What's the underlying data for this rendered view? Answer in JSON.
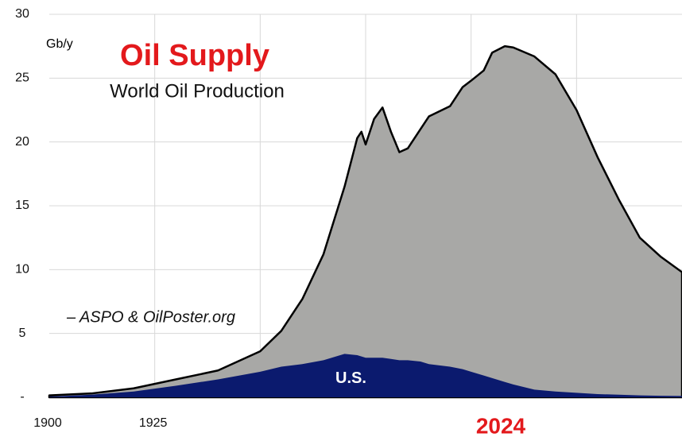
{
  "chart_data": {
    "type": "area",
    "title": "Oil Supply",
    "subtitle": "World Oil Production",
    "y_unit": "Gb/y",
    "annotation": "– ASPO & OilPoster.org",
    "highlight_label": "2024",
    "x": [
      1900,
      1910,
      1920,
      1930,
      1940,
      1950,
      1955,
      1960,
      1965,
      1970,
      1973,
      1974,
      1975,
      1977,
      1979,
      1981,
      1983,
      1985,
      1988,
      1990,
      1995,
      1998,
      2000,
      2003,
      2005,
      2008,
      2010,
      2015,
      2020,
      2025,
      2030,
      2035,
      2040,
      2045,
      2050
    ],
    "series": [
      {
        "color": "#a8a8a6",
        "stroke": "#000000",
        "values": [
          0.15,
          0.3,
          0.7,
          1.4,
          2.1,
          3.6,
          5.2,
          7.7,
          11.2,
          16.5,
          20.3,
          20.8,
          19.8,
          21.8,
          22.7,
          20.8,
          19.2,
          19.5,
          21,
          22,
          22.8,
          24.3,
          24.8,
          25.6,
          27,
          27.5,
          27.4,
          26.7,
          25.3,
          22.5,
          18.8,
          15.5,
          12.5,
          11,
          9.8
        ]
      },
      {
        "name": "U.S.",
        "color": "#0b1a6e",
        "values": [
          0.05,
          0.2,
          0.45,
          0.9,
          1.4,
          2.0,
          2.4,
          2.6,
          2.9,
          3.4,
          3.3,
          3.2,
          3.1,
          3.1,
          3.1,
          3.0,
          2.9,
          2.9,
          2.8,
          2.6,
          2.4,
          2.2,
          2.0,
          1.7,
          1.5,
          1.2,
          1.0,
          0.6,
          0.45,
          0.35,
          0.25,
          0.2,
          0.15,
          0.12,
          0.1
        ]
      }
    ],
    "xlim": [
      1900,
      2050
    ],
    "xticks": [
      1900,
      1925
    ],
    "xgrid": [
      1925,
      1950,
      1975,
      2000,
      2025
    ],
    "ylim": [
      0,
      30
    ],
    "yticks": [
      {
        "value": 0,
        "label": "-"
      },
      5,
      10,
      15,
      20,
      25,
      30
    ],
    "grid": true
  }
}
